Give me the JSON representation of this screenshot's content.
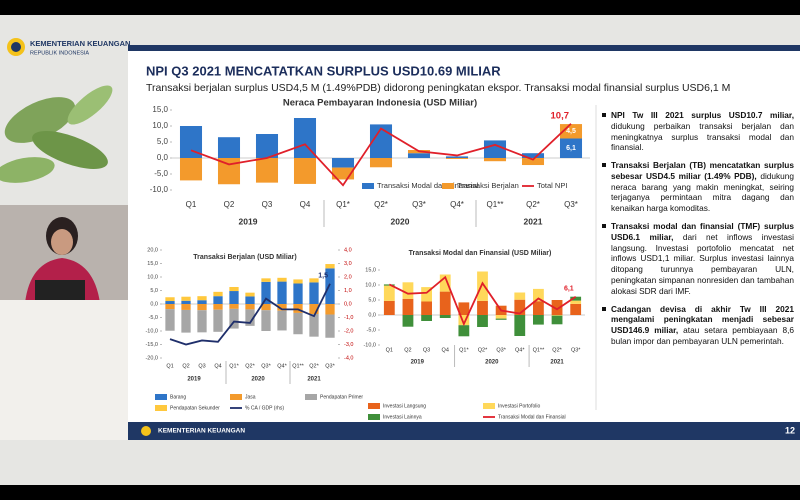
{
  "header": {
    "title": "KEMENTERIAN KEUANGAN",
    "subtitle": "REPUBLIK INDONESIA"
  },
  "slide": {
    "title": "NPI Q3 2021 MENCATATKAN SURPLUS USD10.69 MILIAR",
    "subtitle": "Transaksi berjalan surplus USD4,5 M (1.49%PDB) didorong peningkatan ekspor. Transaksi modal finansial surplus USD6,1 M",
    "footer": "KEMENTERIAN KEUANGAN",
    "page": 12
  },
  "bullets": [
    {
      "bold": "NPI Tw III 2021 surplus USD10.7 miliar,",
      "text": " didukung perbaikan transaksi berjalan dan meningkatnya surplus transaksi modal dan finansial."
    },
    {
      "bold": "Transaksi Berjalan (TB) mencatatkan surplus sebesar USD4.5 miliar (1.49% PDB),",
      "text": " didukung neraca barang yang makin meningkat, seiring terjaganya permintaan mitra dagang dan kenaikan harga komoditas."
    },
    {
      "bold": "Transaksi modal dan finansial (TMF) surplus USD6.1 miliar,",
      "text": " dari net inflows investasi langsung. Investasi portofolio mencatat net inflows USD1,1 miliar. Surplus investasi lainnya ditopang turunnya pembayaran ULN, peningkatan simpanan nonresiden dan tambahan alokasi SDR dari IMF."
    },
    {
      "bold": "Cadangan devisa di akhir Tw III 2021 mengalami peningkatan menjadi sebesar USD146.9 miliar,",
      "text": " atau setara pembiayaan 8,6 bulan impor dan pembayaran ULN pemerintah."
    }
  ],
  "chart_data": [
    {
      "type": "bar",
      "title": "Neraca Pembayaran Indonesia (USD Miliar)",
      "stacked": true,
      "categories": [
        "Q1",
        "Q2",
        "Q3",
        "Q4",
        "Q1*",
        "Q2*",
        "Q3*",
        "Q4*",
        "Q1**",
        "Q2*",
        "Q3*"
      ],
      "groups": [
        "2019",
        "2020",
        "2021"
      ],
      "ylim": [
        -10,
        15
      ],
      "yticks": [
        {
          "value": 15,
          "label": "15,0"
        },
        {
          "value": 10,
          "label": "10,0"
        },
        {
          "value": 5,
          "label": "5,0"
        },
        {
          "value": 0,
          "label": "0,0"
        },
        {
          "value": -5,
          "label": "-5,0"
        },
        {
          "value": -10,
          "label": "-10,0"
        }
      ],
      "series": [
        {
          "name": "Transaksi Modal dan Finansial",
          "type": "bar",
          "color": "#2e75c8",
          "values": [
            10.0,
            6.5,
            7.5,
            12.5,
            -3.0,
            10.5,
            1.5,
            0.5,
            5.5,
            1.5,
            6.1
          ],
          "value_labels": [
            null,
            null,
            null,
            null,
            null,
            null,
            null,
            null,
            null,
            null,
            "6,1"
          ]
        },
        {
          "name": "Transaksi Berjalan",
          "type": "bar",
          "color": "#f39a2c",
          "values": [
            -7.0,
            -8.2,
            -7.7,
            -8.1,
            -3.7,
            -2.9,
            1.0,
            -0.3,
            -1.0,
            -2.2,
            4.5
          ],
          "value_labels": [
            null,
            null,
            null,
            null,
            null,
            null,
            null,
            null,
            null,
            null,
            "4,5"
          ]
        },
        {
          "name": "Total NPI",
          "type": "line",
          "color": "#e0202a",
          "values": [
            2.4,
            -2.0,
            0.0,
            4.3,
            -8.5,
            9.2,
            2.1,
            0.8,
            4.1,
            -0.5,
            10.7
          ],
          "value_labels": [
            null,
            null,
            null,
            null,
            null,
            null,
            null,
            null,
            null,
            null,
            "10,7"
          ]
        }
      ]
    },
    {
      "type": "bar",
      "title": "Transaksi Berjalan (USD Miliar)",
      "stacked": true,
      "categories": [
        "Q1",
        "Q2",
        "Q3",
        "Q4",
        "Q1*",
        "Q2*",
        "Q3*",
        "Q4*",
        "Q1**",
        "Q2*",
        "Q3*"
      ],
      "groups": [
        "2019",
        "2020",
        "2021"
      ],
      "ylim": [
        -20,
        20
      ],
      "yticks": [
        {
          "value": 20,
          "label": "20,0"
        },
        {
          "value": 15,
          "label": "15,0"
        },
        {
          "value": 10,
          "label": "10,0"
        },
        {
          "value": 5,
          "label": "5,0"
        },
        {
          "value": 0,
          "label": "0,0"
        },
        {
          "value": -5,
          "label": "-5,0"
        },
        {
          "value": -10,
          "label": "-10,0"
        },
        {
          "value": -15,
          "label": "-15,0"
        },
        {
          "value": -20,
          "label": "-20,0"
        }
      ],
      "y2lim": [
        -4,
        4
      ],
      "y2ticks": [
        {
          "value": 4,
          "label": "4,0"
        },
        {
          "value": 3,
          "label": "3,0"
        },
        {
          "value": 2,
          "label": "2,0"
        },
        {
          "value": 1,
          "label": "1,0"
        },
        {
          "value": 0,
          "label": "0,0"
        },
        {
          "value": -1,
          "label": "-1,0"
        },
        {
          "value": -2,
          "label": "-2,0"
        },
        {
          "value": -3,
          "label": "-3,0"
        },
        {
          "value": -4,
          "label": "-4,0"
        }
      ],
      "series": [
        {
          "name": "Barang",
          "type": "bar",
          "color": "#2e75c8",
          "values": [
            1.1,
            1.2,
            1.4,
            2.9,
            4.8,
            2.8,
            8.2,
            8.3,
            7.6,
            8.0,
            13.2
          ]
        },
        {
          "name": "Jasa",
          "type": "bar",
          "color": "#f39a2c",
          "values": [
            -1.9,
            -2.2,
            -2.3,
            -2.1,
            -1.8,
            -2.0,
            -2.3,
            -2.5,
            -3.3,
            -3.7,
            -3.9
          ]
        },
        {
          "name": "Pendapatan Primer",
          "type": "bar",
          "color": "#a6a6a6",
          "values": [
            -8.0,
            -8.4,
            -8.2,
            -8.2,
            -7.3,
            -6.1,
            -7.7,
            -7.3,
            -7.9,
            -8.4,
            -8.6
          ]
        },
        {
          "name": "Pendapatan Sekunder",
          "type": "bar",
          "color": "#ffc83d",
          "values": [
            1.4,
            1.5,
            1.5,
            1.6,
            1.5,
            1.4,
            1.3,
            1.4,
            1.5,
            1.5,
            1.6
          ]
        },
        {
          "name": "% CA / GDP (rhs)",
          "type": "line",
          "axis": "y2",
          "color": "#1f2f6b",
          "values": [
            -2.6,
            -3.0,
            -2.7,
            -2.8,
            -1.3,
            -1.4,
            0.4,
            -0.4,
            -0.4,
            -0.9,
            1.5
          ],
          "value_labels": [
            null,
            null,
            null,
            null,
            null,
            null,
            null,
            null,
            null,
            null,
            "1,5"
          ]
        }
      ]
    },
    {
      "type": "bar",
      "title": "Transaksi Modal dan Finansial  (USD Miliar)",
      "stacked": true,
      "categories": [
        "Q1",
        "Q2",
        "Q3",
        "Q4",
        "Q1*",
        "Q2*",
        "Q3*",
        "Q4*",
        "Q1**",
        "Q2*",
        "Q3*"
      ],
      "groups": [
        "2019",
        "2020",
        "2021"
      ],
      "ylim": [
        -10,
        15
      ],
      "yticks": [
        {
          "value": 15,
          "label": "15,0"
        },
        {
          "value": 10,
          "label": "10,0"
        },
        {
          "value": 5,
          "label": "5,0"
        },
        {
          "value": 0,
          "label": "0,0"
        },
        {
          "value": -5,
          "label": "-5,0"
        },
        {
          "value": -10,
          "label": "-10,0"
        }
      ],
      "series": [
        {
          "name": "Investasi Langsung",
          "type": "bar",
          "color": "#e8631c",
          "values": [
            4.7,
            5.4,
            4.5,
            7.8,
            4.2,
            4.7,
            3.1,
            5.1,
            4.6,
            5.0,
            3.7
          ]
        },
        {
          "name": "Investasi Portofolio",
          "type": "bar",
          "color": "#ffd85a",
          "values": [
            5.1,
            5.5,
            4.8,
            5.7,
            -3.4,
            9.8,
            -1.2,
            2.4,
            4.1,
            -0.2,
            1.1
          ]
        },
        {
          "name": "Investasi Lainnya",
          "type": "bar",
          "color": "#3f8f3a",
          "values": [
            0.4,
            -3.9,
            -2.0,
            -1.0,
            -3.7,
            -4.0,
            -0.4,
            -7.0,
            -3.2,
            -2.9,
            1.3
          ]
        },
        {
          "name": "Transaksi Modal dan Finansial",
          "type": "line",
          "color": "#e0202a",
          "values": [
            10.2,
            7.1,
            7.4,
            12.6,
            -3.0,
            10.6,
            1.5,
            0.5,
            5.5,
            1.9,
            6.1
          ],
          "value_labels": [
            null,
            null,
            null,
            null,
            null,
            null,
            null,
            null,
            null,
            null,
            "6,1"
          ]
        }
      ]
    }
  ]
}
